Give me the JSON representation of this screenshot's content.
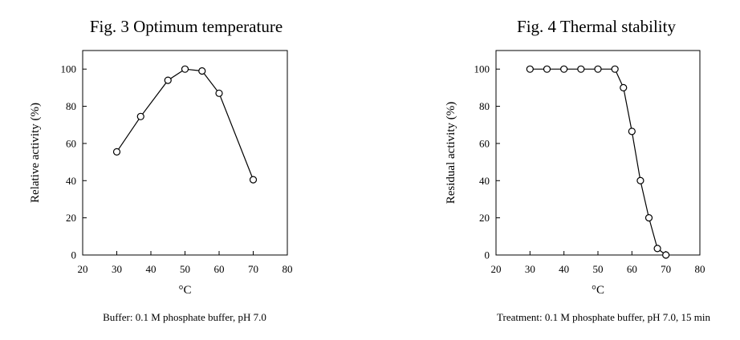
{
  "chart_data": [
    {
      "type": "line",
      "title": "Fig. 3  Optimum temperature",
      "xlabel": "°C",
      "ylabel": "Relative activity (%)",
      "xlim": [
        20,
        80
      ],
      "ylim": [
        0,
        110
      ],
      "xticks": [
        20,
        30,
        40,
        50,
        60,
        70,
        80
      ],
      "yticks": [
        0,
        20,
        40,
        60,
        80,
        100
      ],
      "xtick_labels": [
        "20",
        "30",
        "40",
        "50",
        "60",
        "70",
        "80"
      ],
      "ytick_labels": [
        "0",
        "20",
        "40",
        "60",
        "80",
        "100"
      ],
      "grid": false,
      "caption": "Buffer: 0.1 M phosphate buffer, pH 7.0",
      "series": [
        {
          "x": [
            30,
            37,
            45,
            50,
            55,
            60,
            70
          ],
          "y": [
            55.5,
            74.5,
            94,
            100,
            99,
            87,
            40.5
          ]
        }
      ]
    },
    {
      "type": "line",
      "title": "Fig. 4  Thermal stability",
      "xlabel": "°C",
      "ylabel": "Residual activity (%)",
      "xlim": [
        20,
        80
      ],
      "ylim": [
        0,
        110
      ],
      "xticks": [
        20,
        30,
        40,
        50,
        60,
        70,
        80
      ],
      "yticks": [
        0,
        20,
        40,
        60,
        80,
        100
      ],
      "xtick_labels": [
        "20",
        "30",
        "40",
        "50",
        "60",
        "70",
        "80"
      ],
      "ytick_labels": [
        "0",
        "20",
        "40",
        "60",
        "80",
        "100"
      ],
      "grid": false,
      "caption": "Treatment: 0.1 M phosphate buffer, pH 7.0, 15 min",
      "series": [
        {
          "x": [
            30,
            35,
            40,
            45,
            50,
            55,
            57.5,
            60,
            62.5,
            65,
            67.5,
            70
          ],
          "y": [
            100,
            100,
            100,
            100,
            100,
            100,
            90,
            66.5,
            40,
            20,
            3.5,
            0
          ]
        }
      ]
    }
  ]
}
